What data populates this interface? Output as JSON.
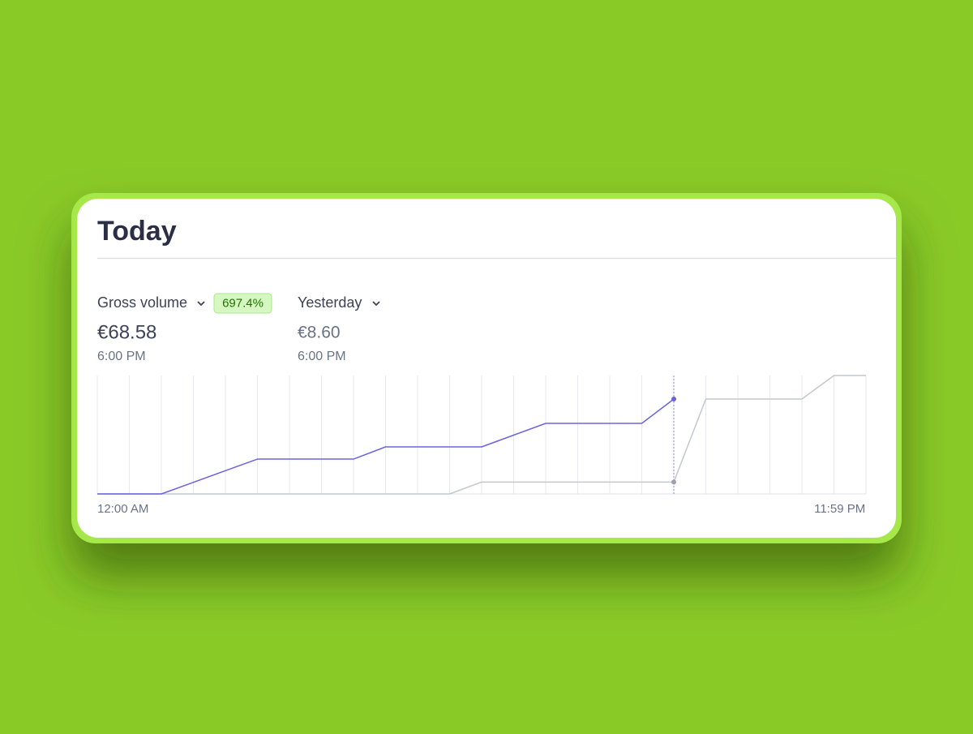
{
  "header": {
    "title": "Today"
  },
  "metrics": [
    {
      "label": "Gross volume",
      "change": "697.4%",
      "value": "€68.58",
      "time": "6:00 PM"
    },
    {
      "label": "Yesterday",
      "value": "€8.60",
      "time": "6:00 PM"
    }
  ],
  "chart_data": {
    "type": "line",
    "x": [
      0,
      1,
      2,
      3,
      4,
      5,
      6,
      7,
      8,
      9,
      10,
      11,
      12,
      13,
      14,
      15,
      16,
      17,
      18,
      19,
      20,
      21,
      22,
      23,
      24
    ],
    "series": [
      {
        "color": "#6b63e0",
        "values": [
          0,
          0,
          0,
          8.4,
          16.8,
          25.2,
          25.2,
          25.2,
          25.2,
          34,
          34,
          34,
          34,
          42.5,
          51,
          51,
          51,
          51,
          68.58,
          null,
          null,
          null,
          null,
          null,
          null
        ]
      },
      {
        "color": "#c3c8cf",
        "values": [
          0,
          0,
          0,
          0,
          0,
          0,
          0,
          0,
          0,
          0,
          0,
          0,
          8.6,
          8.6,
          8.6,
          8.6,
          8.6,
          8.6,
          8.6,
          68.6,
          68.6,
          68.6,
          68.6,
          85.6,
          85.6
        ]
      }
    ],
    "xlim": [
      0,
      24
    ],
    "xticks": [
      {
        "value": 0,
        "label": "12:00 AM"
      },
      {
        "value": 23.98,
        "label": "11:59 PM"
      }
    ],
    "ylim": [
      0,
      85.6
    ],
    "grid": true
  }
}
